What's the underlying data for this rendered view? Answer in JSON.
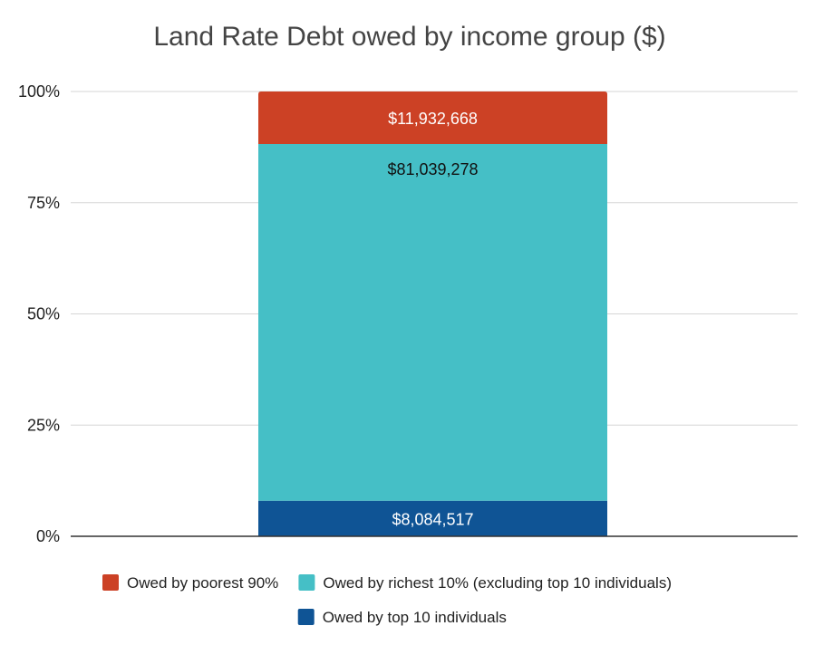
{
  "chart_data": {
    "type": "bar",
    "stacked": true,
    "normalized": true,
    "title": "Land Rate Debt owed by income group ($)",
    "xlabel": "",
    "ylabel": "",
    "ylim": [
      0,
      100
    ],
    "y_ticks": [
      "0%",
      "25%",
      "50%",
      "75%",
      "100%"
    ],
    "categories": [
      ""
    ],
    "series": [
      {
        "name": "Owed by top 10 individuals",
        "values": [
          8084517
        ],
        "label": "$8,084,517",
        "color": "#0f5495",
        "label_color": "#ffffff"
      },
      {
        "name": "Owed by richest 10%  (excluding top 10 individuals)",
        "values": [
          81039278
        ],
        "label": "$81,039,278",
        "color": "#45bfc6",
        "label_color": "#111111"
      },
      {
        "name": "Owed by poorest 90%",
        "values": [
          11932668
        ],
        "label": "$11,932,668",
        "color": "#cc4125",
        "label_color": "#ffffff"
      }
    ],
    "legend": {
      "position": "bottom",
      "items": [
        {
          "name": "Owed by poorest 90%",
          "color": "#cc4125"
        },
        {
          "name": "Owed by richest 10%  (excluding top 10 individuals)",
          "color": "#45bfc6"
        },
        {
          "name": "Owed by top 10 individuals",
          "color": "#0f5495"
        }
      ]
    },
    "grid": true
  }
}
